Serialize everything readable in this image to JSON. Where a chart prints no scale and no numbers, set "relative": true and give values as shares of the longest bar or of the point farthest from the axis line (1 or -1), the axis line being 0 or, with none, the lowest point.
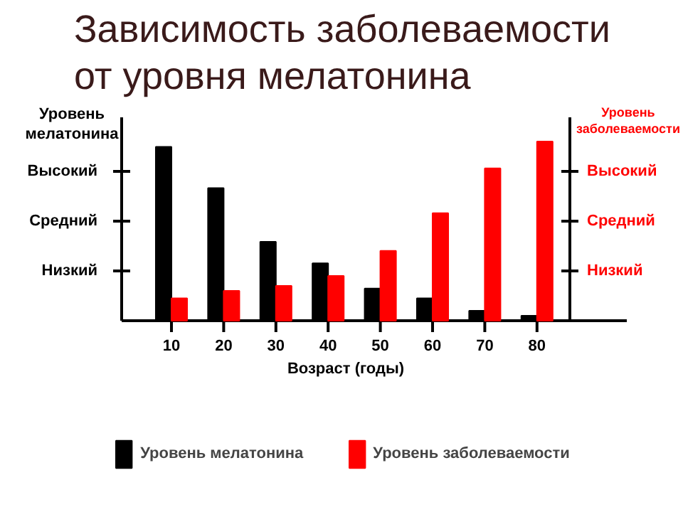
{
  "chart_data": {
    "type": "bar",
    "title": "Зависимость заболеваемости от уровня мелатонина",
    "xlabel": "Возраст (годы)",
    "ylabel": "Уровень мелатонина",
    "y2label": "Уровень заболеваемости",
    "categories": [
      "10",
      "20",
      "30",
      "40",
      "50",
      "60",
      "70",
      "80"
    ],
    "relative": true,
    "series": [
      {
        "name": "Уровень мелатонина",
        "color": "#000000",
        "values": [
          0.97,
          0.74,
          0.44,
          0.32,
          0.18,
          0.125,
          0.056,
          0.028
        ]
      },
      {
        "name": "Уровень заболеваемости",
        "color": "#ff0000",
        "axis": "y2",
        "values": [
          0.125,
          0.167,
          0.194,
          0.25,
          0.39,
          0.6,
          0.85,
          1
        ]
      }
    ],
    "annotations": [
      "Низкий",
      "Средний",
      "Высокий",
      "Низкий",
      "Средний",
      "Высокий"
    ],
    "legend": "bottom"
  }
}
